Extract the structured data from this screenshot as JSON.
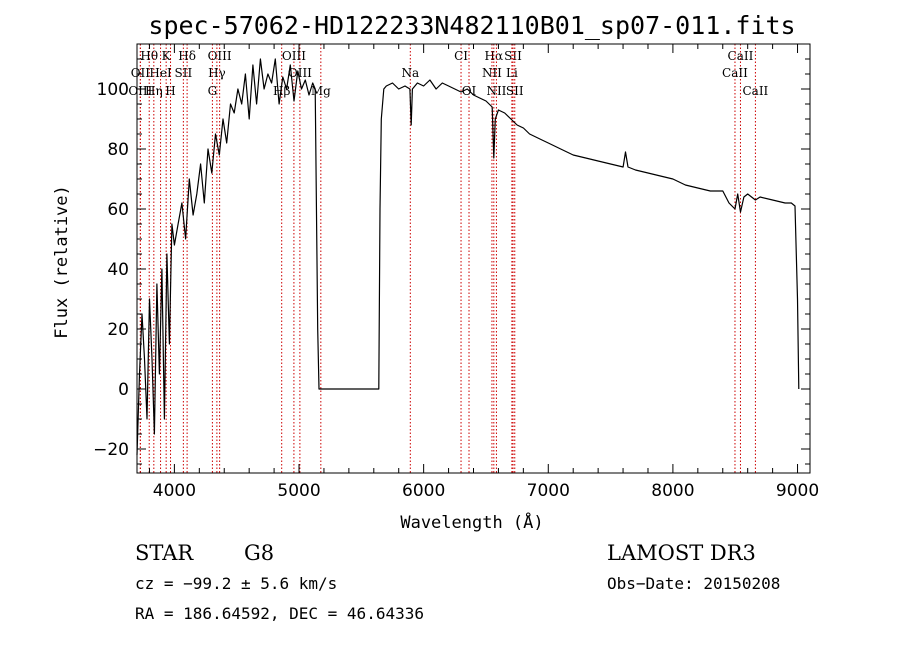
{
  "chart_data": {
    "type": "line",
    "title": "spec-57062-HD122233N482110B01_sp07-011.fits",
    "xlabel": "Wavelength (Å)",
    "ylabel": "Flux (relative)",
    "xlim": [
      3700,
      9100
    ],
    "ylim": [
      -28,
      115
    ],
    "x_ticks": [
      4000,
      5000,
      6000,
      7000,
      8000,
      9000
    ],
    "y_ticks": [
      -20,
      0,
      20,
      40,
      60,
      80,
      100
    ],
    "grid": false,
    "series": [
      {
        "x": [
          3700,
          3720,
          3740,
          3760,
          3780,
          3800,
          3820,
          3840,
          3860,
          3880,
          3900,
          3920,
          3940,
          3960,
          3980,
          4000,
          4030,
          4060,
          4090,
          4120,
          4150,
          4180,
          4210,
          4240,
          4270,
          4300,
          4330,
          4360,
          4390,
          4420,
          4450,
          4480,
          4510,
          4540,
          4570,
          4600,
          4630,
          4660,
          4690,
          4720,
          4750,
          4780,
          4810,
          4840,
          4870,
          4900,
          4930,
          4960,
          4990,
          5020,
          5050,
          5080,
          5110,
          5130,
          5150,
          5160,
          5170,
          5200,
          5300,
          5400,
          5500,
          5600,
          5640,
          5650,
          5660,
          5680,
          5700,
          5750,
          5800,
          5850,
          5890,
          5900,
          5910,
          5950,
          6000,
          6050,
          6100,
          6150,
          6200,
          6250,
          6300,
          6350,
          6400,
          6450,
          6500,
          6550,
          6563,
          6575,
          6600,
          6650,
          6700,
          6750,
          6800,
          6850,
          6900,
          6950,
          7000,
          7100,
          7200,
          7300,
          7400,
          7500,
          7600,
          7620,
          7640,
          7700,
          7800,
          7900,
          8000,
          8100,
          8200,
          8300,
          8400,
          8450,
          8498,
          8520,
          8542,
          8570,
          8600,
          8662,
          8700,
          8800,
          8900,
          8950,
          8980,
          9000,
          9010
        ],
        "y": [
          -22,
          5,
          25,
          10,
          -10,
          30,
          10,
          -15,
          35,
          5,
          40,
          -10,
          45,
          15,
          55,
          48,
          55,
          62,
          50,
          70,
          58,
          65,
          75,
          62,
          80,
          72,
          85,
          78,
          90,
          82,
          95,
          92,
          100,
          95,
          105,
          90,
          108,
          95,
          110,
          100,
          105,
          102,
          110,
          95,
          104,
          100,
          108,
          96,
          106,
          100,
          103,
          98,
          102,
          100,
          20,
          0,
          0,
          0,
          0,
          0,
          0,
          0,
          0,
          60,
          90,
          100,
          101,
          102,
          100,
          101,
          100,
          88,
          100,
          102,
          101,
          103,
          100,
          102,
          101,
          100,
          99,
          100,
          98,
          97,
          96,
          94,
          77,
          90,
          93,
          92,
          90,
          88,
          87,
          85,
          84,
          83,
          82,
          80,
          78,
          77,
          76,
          75,
          74,
          79,
          74,
          73,
          72,
          71,
          70,
          68,
          67,
          66,
          66,
          62,
          60,
          65,
          59,
          64,
          65,
          63,
          64,
          63,
          62,
          62,
          61,
          30,
          0
        ]
      }
    ],
    "line_markers": [
      {
        "label": "Hθ",
        "x": 3798,
        "row": 0
      },
      {
        "label": "K",
        "x": 3934,
        "row": 0
      },
      {
        "label": "Hδ",
        "x": 4102,
        "row": 0
      },
      {
        "label": "OIII",
        "x": 4363,
        "row": 0
      },
      {
        "label": "OIII",
        "x": 4959,
        "row": 0
      },
      {
        "label": "CI",
        "x": 6300,
        "row": 0
      },
      {
        "label": "Hα",
        "x": 6563,
        "row": 0
      },
      {
        "label": "SII",
        "x": 6717,
        "row": 0
      },
      {
        "label": "CaII",
        "x": 8542,
        "row": 0
      },
      {
        "label": "OII",
        "x": 3727,
        "row": 1
      },
      {
        "label": "HeI",
        "x": 3889,
        "row": 1
      },
      {
        "label": "SII",
        "x": 4072,
        "row": 1
      },
      {
        "label": "Hγ",
        "x": 4341,
        "row": 1
      },
      {
        "label": "OIII",
        "x": 5007,
        "row": 1
      },
      {
        "label": "Na",
        "x": 5893,
        "row": 1
      },
      {
        "label": "NII",
        "x": 6548,
        "row": 1
      },
      {
        "label": "Li",
        "x": 6708,
        "row": 1
      },
      {
        "label": "CaII",
        "x": 8498,
        "row": 1
      },
      {
        "label": "OIII",
        "x": 3727,
        "row": 2
      },
      {
        "label": "Hη",
        "x": 3835,
        "row": 2
      },
      {
        "label": "H",
        "x": 3969,
        "row": 2
      },
      {
        "label": "G",
        "x": 4305,
        "row": 2
      },
      {
        "label": "Hβ",
        "x": 4861,
        "row": 2
      },
      {
        "label": "Mg",
        "x": 5175,
        "row": 2
      },
      {
        "label": "OI",
        "x": 6364,
        "row": 2
      },
      {
        "label": "NII",
        "x": 6584,
        "row": 2
      },
      {
        "label": "SII",
        "x": 6731,
        "row": 2
      },
      {
        "label": "CaII",
        "x": 8662,
        "row": 2
      }
    ],
    "colors": {
      "line": "#000000",
      "marker_line": "#cc0000"
    }
  },
  "info": {
    "class": "STAR",
    "subclass": "G8",
    "survey": "LAMOST DR3",
    "cz": "cz = −99.2 ± 5.6 km/s",
    "obs_date": "Obs−Date: 20150208",
    "coords": "RA = 186.64592, DEC =  46.64336"
  }
}
